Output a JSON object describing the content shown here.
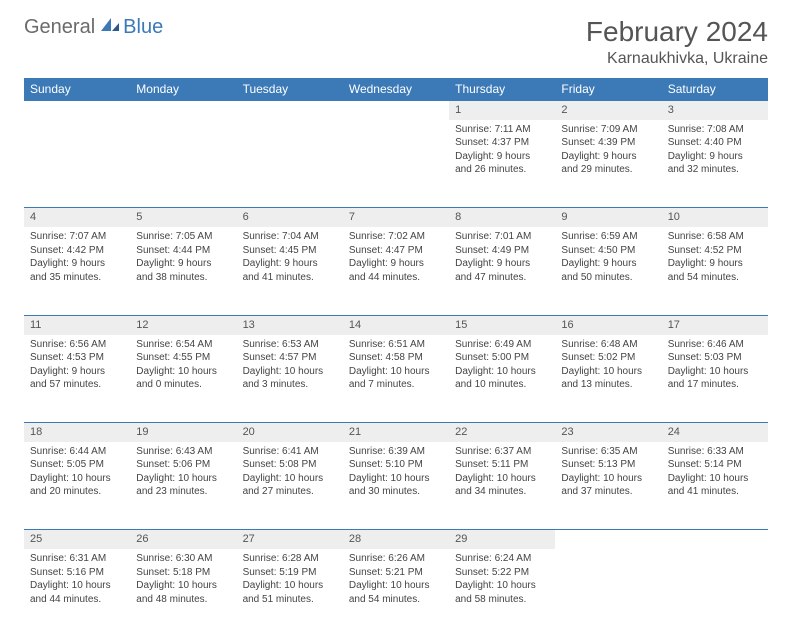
{
  "logo": {
    "general": "General",
    "blue": "Blue"
  },
  "title": "February 2024",
  "location": "Karnaukhivka, Ukraine",
  "colors": {
    "header_bg": "#3b79b7",
    "header_text": "#ffffff",
    "daynum_bg": "#eeeeee",
    "text": "#444444",
    "border": "#3b79b7"
  },
  "weekdays": [
    "Sunday",
    "Monday",
    "Tuesday",
    "Wednesday",
    "Thursday",
    "Friday",
    "Saturday"
  ],
  "weeks": [
    [
      null,
      null,
      null,
      null,
      {
        "n": "1",
        "sr": "7:11 AM",
        "ss": "4:37 PM",
        "dl": "9 hours and 26 minutes."
      },
      {
        "n": "2",
        "sr": "7:09 AM",
        "ss": "4:39 PM",
        "dl": "9 hours and 29 minutes."
      },
      {
        "n": "3",
        "sr": "7:08 AM",
        "ss": "4:40 PM",
        "dl": "9 hours and 32 minutes."
      }
    ],
    [
      {
        "n": "4",
        "sr": "7:07 AM",
        "ss": "4:42 PM",
        "dl": "9 hours and 35 minutes."
      },
      {
        "n": "5",
        "sr": "7:05 AM",
        "ss": "4:44 PM",
        "dl": "9 hours and 38 minutes."
      },
      {
        "n": "6",
        "sr": "7:04 AM",
        "ss": "4:45 PM",
        "dl": "9 hours and 41 minutes."
      },
      {
        "n": "7",
        "sr": "7:02 AM",
        "ss": "4:47 PM",
        "dl": "9 hours and 44 minutes."
      },
      {
        "n": "8",
        "sr": "7:01 AM",
        "ss": "4:49 PM",
        "dl": "9 hours and 47 minutes."
      },
      {
        "n": "9",
        "sr": "6:59 AM",
        "ss": "4:50 PM",
        "dl": "9 hours and 50 minutes."
      },
      {
        "n": "10",
        "sr": "6:58 AM",
        "ss": "4:52 PM",
        "dl": "9 hours and 54 minutes."
      }
    ],
    [
      {
        "n": "11",
        "sr": "6:56 AM",
        "ss": "4:53 PM",
        "dl": "9 hours and 57 minutes."
      },
      {
        "n": "12",
        "sr": "6:54 AM",
        "ss": "4:55 PM",
        "dl": "10 hours and 0 minutes."
      },
      {
        "n": "13",
        "sr": "6:53 AM",
        "ss": "4:57 PM",
        "dl": "10 hours and 3 minutes."
      },
      {
        "n": "14",
        "sr": "6:51 AM",
        "ss": "4:58 PM",
        "dl": "10 hours and 7 minutes."
      },
      {
        "n": "15",
        "sr": "6:49 AM",
        "ss": "5:00 PM",
        "dl": "10 hours and 10 minutes."
      },
      {
        "n": "16",
        "sr": "6:48 AM",
        "ss": "5:02 PM",
        "dl": "10 hours and 13 minutes."
      },
      {
        "n": "17",
        "sr": "6:46 AM",
        "ss": "5:03 PM",
        "dl": "10 hours and 17 minutes."
      }
    ],
    [
      {
        "n": "18",
        "sr": "6:44 AM",
        "ss": "5:05 PM",
        "dl": "10 hours and 20 minutes."
      },
      {
        "n": "19",
        "sr": "6:43 AM",
        "ss": "5:06 PM",
        "dl": "10 hours and 23 minutes."
      },
      {
        "n": "20",
        "sr": "6:41 AM",
        "ss": "5:08 PM",
        "dl": "10 hours and 27 minutes."
      },
      {
        "n": "21",
        "sr": "6:39 AM",
        "ss": "5:10 PM",
        "dl": "10 hours and 30 minutes."
      },
      {
        "n": "22",
        "sr": "6:37 AM",
        "ss": "5:11 PM",
        "dl": "10 hours and 34 minutes."
      },
      {
        "n": "23",
        "sr": "6:35 AM",
        "ss": "5:13 PM",
        "dl": "10 hours and 37 minutes."
      },
      {
        "n": "24",
        "sr": "6:33 AM",
        "ss": "5:14 PM",
        "dl": "10 hours and 41 minutes."
      }
    ],
    [
      {
        "n": "25",
        "sr": "6:31 AM",
        "ss": "5:16 PM",
        "dl": "10 hours and 44 minutes."
      },
      {
        "n": "26",
        "sr": "6:30 AM",
        "ss": "5:18 PM",
        "dl": "10 hours and 48 minutes."
      },
      {
        "n": "27",
        "sr": "6:28 AM",
        "ss": "5:19 PM",
        "dl": "10 hours and 51 minutes."
      },
      {
        "n": "28",
        "sr": "6:26 AM",
        "ss": "5:21 PM",
        "dl": "10 hours and 54 minutes."
      },
      {
        "n": "29",
        "sr": "6:24 AM",
        "ss": "5:22 PM",
        "dl": "10 hours and 58 minutes."
      },
      null,
      null
    ]
  ],
  "labels": {
    "sunrise": "Sunrise: ",
    "sunset": "Sunset: ",
    "daylight": "Daylight: "
  }
}
